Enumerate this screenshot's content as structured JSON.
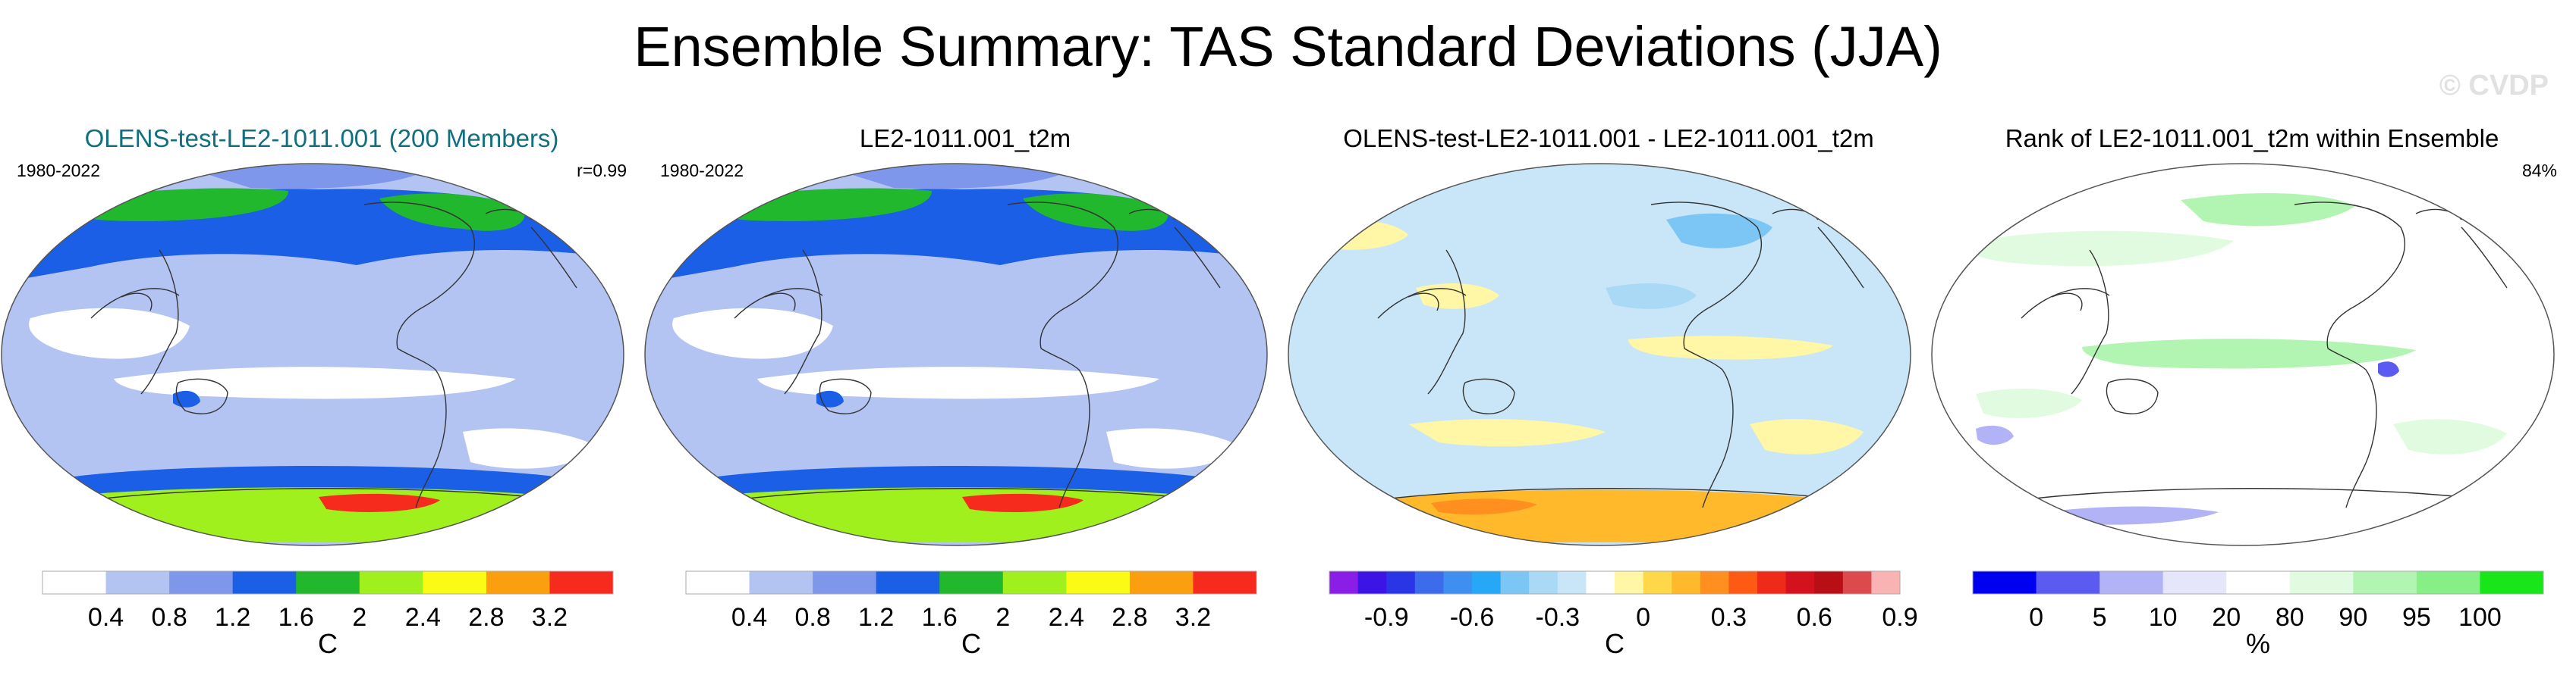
{
  "title": "Ensemble Summary: TAS Standard Deviations (JJA)",
  "watermark": "© CVDP",
  "chart_data": [
    {
      "type": "heatmap",
      "projection": "robinson",
      "title": "OLENS-test-LE2-1011.001 (200 Members)",
      "title_color": "#10707f",
      "period": "1980-2022",
      "stat": "r=0.99",
      "colorbar": {
        "colors": [
          "#ffffff",
          "#b3c3f2",
          "#7f97ea",
          "#1b5fe6",
          "#22b82e",
          "#9ff01c",
          "#fafa14",
          "#fb9f0f",
          "#f72b1d"
        ],
        "tick_labels": [
          "0.4",
          "0.8",
          "1.2",
          "1.6",
          "2",
          "2.4",
          "2.8",
          "3.2"
        ],
        "units": "C"
      },
      "regions": [
        {
          "name": "background",
          "color": "#b3c3f2"
        },
        {
          "name": "northern-high-latitude-band",
          "color": "#1b5fe6"
        },
        {
          "name": "canada-hotspot",
          "color": "#22b82e"
        },
        {
          "name": "siberia-hotspot",
          "color": "#22b82e"
        },
        {
          "name": "arctic-ocean",
          "color": "#7f97ea"
        },
        {
          "name": "west-pacific-low",
          "color": "#ffffff"
        },
        {
          "name": "tropical-pacific-low",
          "color": "#ffffff"
        },
        {
          "name": "atlantic-low",
          "color": "#ffffff"
        },
        {
          "name": "southern-ocean-band",
          "color": "#1b5fe6"
        },
        {
          "name": "antarctica-high",
          "color": "#9ff01c"
        },
        {
          "name": "antarctica-peak",
          "color": "#f72b1d"
        },
        {
          "name": "australia-core",
          "color": "#1b5fe6"
        }
      ]
    },
    {
      "type": "heatmap",
      "projection": "robinson",
      "title": "LE2-1011.001_t2m",
      "title_color": "#000000",
      "period": "1980-2022",
      "stat": "",
      "colorbar": {
        "colors": [
          "#ffffff",
          "#b3c3f2",
          "#7f97ea",
          "#1b5fe6",
          "#22b82e",
          "#9ff01c",
          "#fafa14",
          "#fb9f0f",
          "#f72b1d"
        ],
        "tick_labels": [
          "0.4",
          "0.8",
          "1.2",
          "1.6",
          "2",
          "2.4",
          "2.8",
          "3.2"
        ],
        "units": "C"
      },
      "regions": [
        {
          "name": "background",
          "color": "#b3c3f2"
        },
        {
          "name": "northern-high-latitude-band",
          "color": "#1b5fe6"
        },
        {
          "name": "canada-hotspot",
          "color": "#22b82e"
        },
        {
          "name": "siberia-hotspot",
          "color": "#22b82e"
        },
        {
          "name": "arctic-ocean",
          "color": "#7f97ea"
        },
        {
          "name": "west-pacific-low",
          "color": "#ffffff"
        },
        {
          "name": "tropical-pacific-low",
          "color": "#ffffff"
        },
        {
          "name": "atlantic-low",
          "color": "#ffffff"
        },
        {
          "name": "southern-ocean-band",
          "color": "#1b5fe6"
        },
        {
          "name": "antarctica-high",
          "color": "#9ff01c"
        },
        {
          "name": "antarctica-peak",
          "color": "#f72b1d"
        },
        {
          "name": "australia-core",
          "color": "#1b5fe6"
        }
      ]
    },
    {
      "type": "heatmap",
      "projection": "robinson",
      "title": "OLENS-test-LE2-1011.001 - LE2-1011.001_t2m",
      "title_color": "#000000",
      "period": "",
      "stat": "",
      "colorbar": {
        "colors": [
          "#8a1ee6",
          "#3c14e6",
          "#2a36e6",
          "#3c6bec",
          "#3f8ff0",
          "#27a8f6",
          "#7cc6f5",
          "#a9d9f4",
          "#c8e6f7",
          "#ffffff",
          "#fff6a6",
          "#ffd84a",
          "#ffb92a",
          "#ff8f1e",
          "#ff5a14",
          "#ef2a18",
          "#d3121e",
          "#b80e16",
          "#dc4a4e",
          "#f9b3b3"
        ],
        "tick_labels": [
          "-0.9",
          "-0.6",
          "-0.3",
          "0",
          "0.3",
          "0.6",
          "0.9"
        ],
        "units": "C"
      },
      "regions": [
        {
          "name": "background",
          "color": "#c8e6f7"
        },
        {
          "name": "europe-yellow",
          "color": "#fff6a6"
        },
        {
          "name": "atlantic-band",
          "color": "#fff6a6"
        },
        {
          "name": "pacific-band",
          "color": "#fff6a6"
        },
        {
          "name": "south-atlantic",
          "color": "#fff6a6"
        },
        {
          "name": "west-north-pacific",
          "color": "#fff6a6"
        },
        {
          "name": "eastern-pacific-blue",
          "color": "#a9d9f4"
        },
        {
          "name": "north-america-blue",
          "color": "#7cc6f5"
        },
        {
          "name": "antarctica-orange",
          "color": "#ffb92a"
        },
        {
          "name": "antarctica-red",
          "color": "#ff8f1e"
        }
      ]
    },
    {
      "type": "heatmap",
      "projection": "robinson",
      "title": "Rank of LE2-1011.001_t2m within Ensemble",
      "title_color": "#000000",
      "period": "",
      "stat": "84%",
      "colorbar": {
        "colors": [
          "#0000f0",
          "#5b5bf2",
          "#b2b2f6",
          "#e6e6fb",
          "#ffffff",
          "#e1fbe1",
          "#b2f5b2",
          "#86ef86",
          "#18e618"
        ],
        "tick_labels": [
          "0",
          "5",
          "10",
          "20",
          "80",
          "90",
          "95",
          "100"
        ],
        "units": "%"
      },
      "regions": [
        {
          "name": "background",
          "color": "#ffffff"
        },
        {
          "name": "north-pacific-green",
          "color": "#e1fbe1"
        },
        {
          "name": "eurasia-green",
          "color": "#b2f5b2"
        },
        {
          "name": "equatorial-pacific-green",
          "color": "#b2f5b2"
        },
        {
          "name": "south-atlantic-green",
          "color": "#e1fbe1"
        },
        {
          "name": "indian-ocean-green",
          "color": "#e1fbe1"
        },
        {
          "name": "america-blue",
          "color": "#5b5bf2"
        },
        {
          "name": "australia-blue",
          "color": "#b2b2f6"
        },
        {
          "name": "antarctica-blue",
          "color": "#b2b2f6"
        }
      ]
    }
  ]
}
